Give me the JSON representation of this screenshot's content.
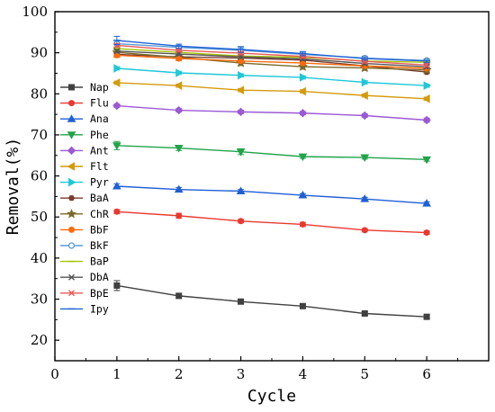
{
  "chart_data": {
    "type": "line",
    "xlabel": "Cycle",
    "ylabel": "Removal(%)",
    "xlim": [
      0,
      7
    ],
    "ylim": [
      15,
      100
    ],
    "xticks": [
      0,
      1,
      2,
      3,
      4,
      5,
      6
    ],
    "yticks": [
      20,
      30,
      40,
      50,
      60,
      70,
      80,
      90,
      100
    ],
    "legend_position": "left",
    "grid": false,
    "x": [
      1,
      2,
      3,
      4,
      5,
      6
    ],
    "series": [
      {
        "name": "Nap",
        "color": "#404040",
        "marker": "square",
        "values": [
          33.3,
          30.8,
          29.4,
          28.3,
          26.5,
          25.7
        ],
        "errors": [
          1.2,
          0.6,
          0.4,
          0.4,
          0.4,
          0.5
        ]
      },
      {
        "name": "Flu",
        "color": "#e8392f",
        "marker": "circle",
        "values": [
          51.3,
          50.3,
          49.0,
          48.2,
          46.8,
          46.2
        ],
        "errors": [
          0.5,
          0.6,
          0.4,
          0.5,
          0.3,
          0.4
        ]
      },
      {
        "name": "Ana",
        "color": "#1f5fd4",
        "marker": "triangle-up",
        "values": [
          57.5,
          56.7,
          56.3,
          55.3,
          54.4,
          53.3
        ],
        "errors": [
          0.6,
          0.5,
          0.4,
          0.4,
          0.4,
          0.4
        ]
      },
      {
        "name": "Phe",
        "color": "#21a34a",
        "marker": "triangle-down",
        "values": [
          67.4,
          66.8,
          65.9,
          64.7,
          64.5,
          64.0
        ],
        "errors": [
          1.0,
          0.6,
          0.7,
          0.4,
          0.4,
          0.4
        ]
      },
      {
        "name": "Ant",
        "color": "#9b59d4",
        "marker": "diamond",
        "values": [
          77.1,
          76.0,
          75.6,
          75.3,
          74.7,
          73.6
        ],
        "errors": [
          0.4,
          0.4,
          0.4,
          0.4,
          0.4,
          0.5
        ]
      },
      {
        "name": "Flt",
        "color": "#d49a0e",
        "marker": "triangle-left",
        "values": [
          82.7,
          82.0,
          80.9,
          80.6,
          79.6,
          78.8
        ],
        "errors": [
          0.4,
          0.4,
          0.4,
          0.4,
          0.4,
          0.4
        ]
      },
      {
        "name": "Pyr",
        "color": "#1fc8d8",
        "marker": "triangle-right",
        "values": [
          86.2,
          85.1,
          84.5,
          84.0,
          82.8,
          82.0
        ],
        "errors": [
          0.4,
          0.4,
          0.4,
          0.4,
          0.4,
          0.4
        ]
      },
      {
        "name": "BaA",
        "color": "#7a3b2e",
        "marker": "hexagon",
        "values": [
          89.6,
          89.0,
          88.7,
          88.2,
          86.8,
          85.3
        ],
        "errors": [
          0.4,
          0.4,
          0.4,
          0.4,
          0.4,
          0.4
        ]
      },
      {
        "name": "ChR",
        "color": "#7a6a2a",
        "marker": "star",
        "values": [
          90.1,
          88.9,
          87.5,
          86.6,
          86.3,
          85.8
        ],
        "errors": [
          1.2,
          0.6,
          0.6,
          0.6,
          0.6,
          0.6
        ]
      },
      {
        "name": "BbF",
        "color": "#ff6a0a",
        "marker": "circle",
        "values": [
          89.4,
          88.6,
          88.0,
          87.5,
          86.8,
          86.2
        ],
        "errors": [
          0.5,
          0.4,
          0.4,
          0.4,
          0.4,
          0.4
        ]
      },
      {
        "name": "BkF",
        "color": "#5b9bd5",
        "marker": "circle-open",
        "values": [
          92.2,
          91.3,
          90.6,
          89.6,
          88.7,
          88.1
        ],
        "errors": [
          0.8,
          0.5,
          0.7,
          0.5,
          0.4,
          0.4
        ]
      },
      {
        "name": "BaP",
        "color": "#a6c400",
        "marker": "line",
        "values": [
          91.0,
          90.1,
          89.2,
          88.9,
          88.0,
          87.7
        ],
        "errors": [
          0.4,
          0.4,
          0.4,
          0.4,
          0.4,
          0.4
        ]
      },
      {
        "name": "DbA",
        "color": "#555555",
        "marker": "x",
        "values": [
          90.4,
          89.7,
          89.0,
          88.5,
          87.4,
          86.6
        ],
        "errors": [
          0.4,
          0.4,
          0.4,
          0.4,
          0.4,
          0.4
        ]
      },
      {
        "name": "BpE",
        "color": "#e85a5a",
        "marker": "x",
        "values": [
          91.8,
          90.6,
          89.9,
          89.1,
          87.9,
          87.0
        ],
        "errors": [
          0.4,
          0.4,
          0.4,
          0.4,
          0.4,
          0.4
        ]
      },
      {
        "name": "Ipy",
        "color": "#1f63d6",
        "marker": "line",
        "values": [
          93.0,
          91.6,
          90.8,
          89.8,
          88.6,
          88.0
        ],
        "errors": [
          1.0,
          0.5,
          0.7,
          0.5,
          0.4,
          0.4
        ]
      }
    ]
  }
}
